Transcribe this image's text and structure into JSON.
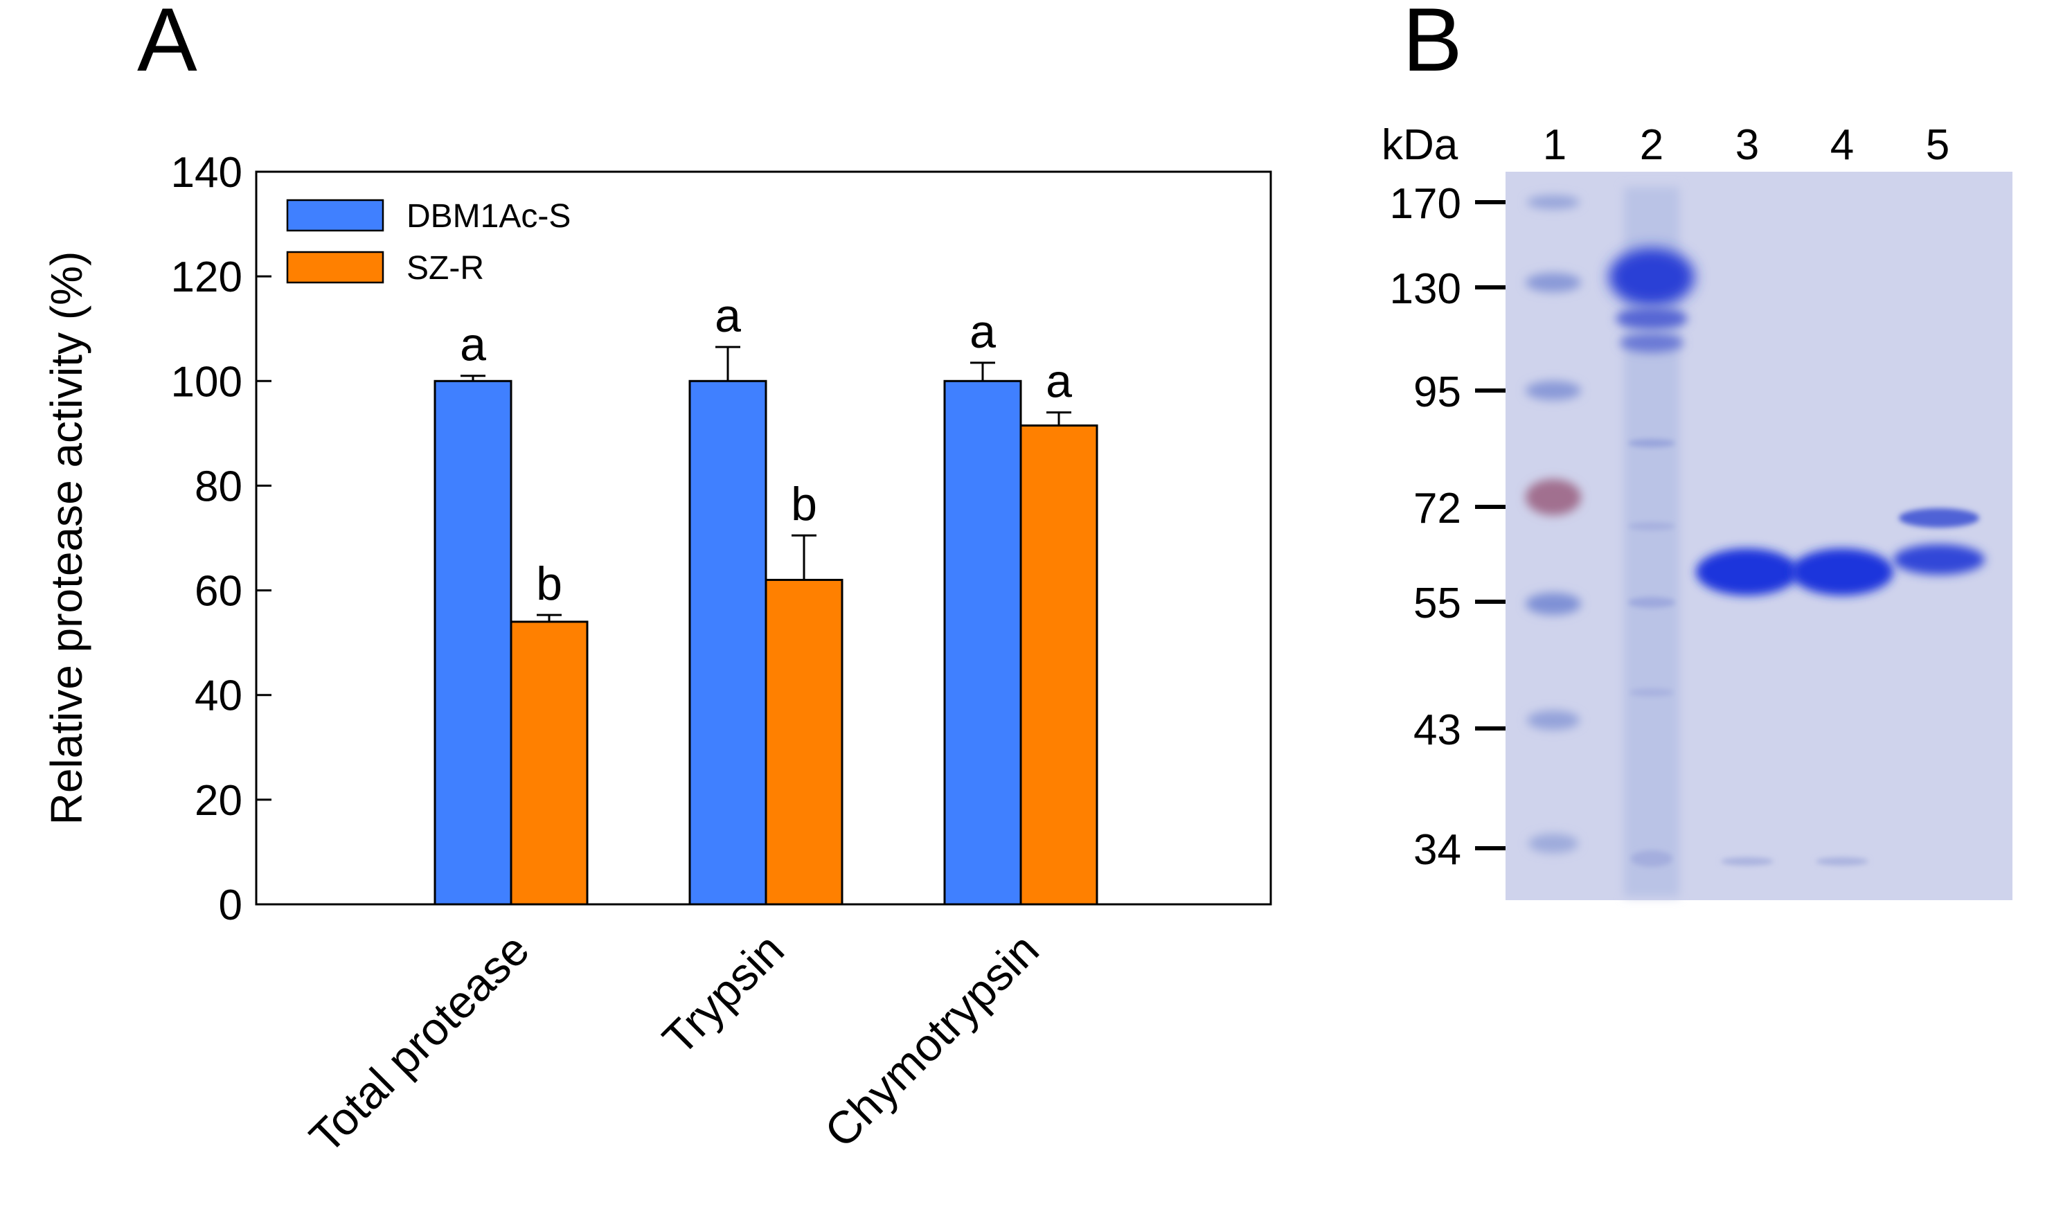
{
  "panel_a": {
    "letter": "A"
  },
  "panel_b": {
    "letter": "B"
  },
  "chart_data": {
    "type": "bar",
    "title": "",
    "xlabel": "",
    "ylabel": "Relative protease activity (%)",
    "ylim": [
      0,
      140
    ],
    "yticks": [
      0,
      20,
      40,
      60,
      80,
      100,
      120,
      140
    ],
    "categories": [
      "Total protease",
      "Trypsin",
      "Chymotrypsin"
    ],
    "series": [
      {
        "name": "DBM1Ac-S",
        "color": "#4080ff",
        "values": [
          100,
          100,
          100
        ],
        "errors": [
          1,
          6.5,
          3.5
        ],
        "significance": [
          "a",
          "a",
          "a"
        ]
      },
      {
        "name": "SZ-R",
        "color": "#ff8000",
        "values": [
          54,
          62,
          91.5
        ],
        "errors": [
          1.3,
          8.5,
          2.5
        ],
        "significance": [
          "b",
          "b",
          "a"
        ]
      }
    ],
    "legend_position": "top-left",
    "grid": false
  },
  "gel": {
    "unit_label": "kDa",
    "lane_labels": [
      "1",
      "2",
      "3",
      "4",
      "5"
    ],
    "markers_kda": [
      "170",
      "130",
      "95",
      "72",
      "55",
      "43",
      "34"
    ],
    "background_color": "#cfd3ec",
    "band_color": "#2b3fd6"
  }
}
